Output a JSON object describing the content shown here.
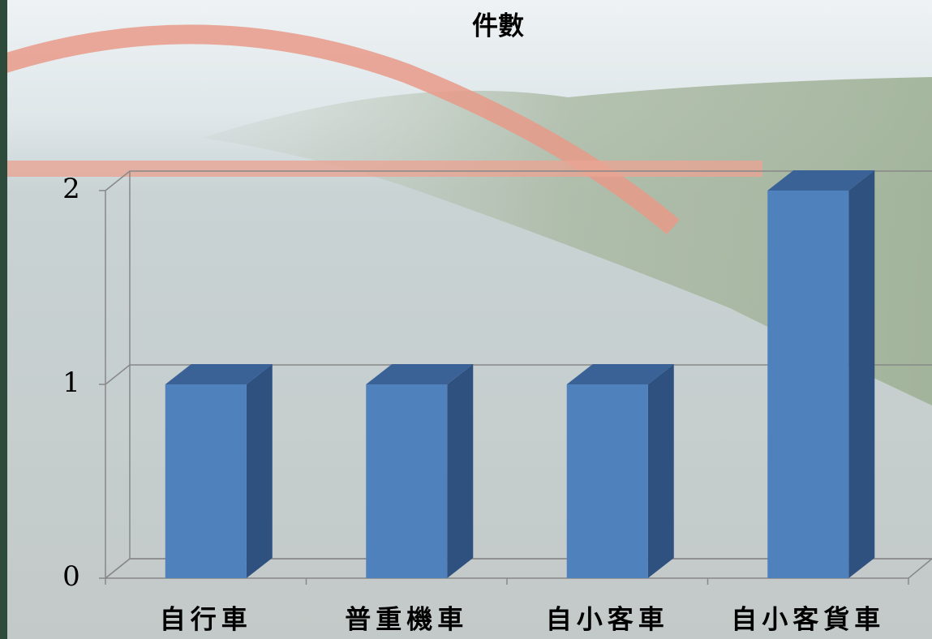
{
  "chart_data": {
    "type": "bar3d",
    "title": "件數",
    "categories": [
      "自行車",
      "普重機車",
      "自小客車",
      "自小客貨車"
    ],
    "values": [
      1,
      1,
      1,
      2
    ],
    "color": "#4f81bd",
    "ylim": [
      0,
      2
    ],
    "yticks": [
      0,
      1,
      2
    ],
    "grid": true
  }
}
